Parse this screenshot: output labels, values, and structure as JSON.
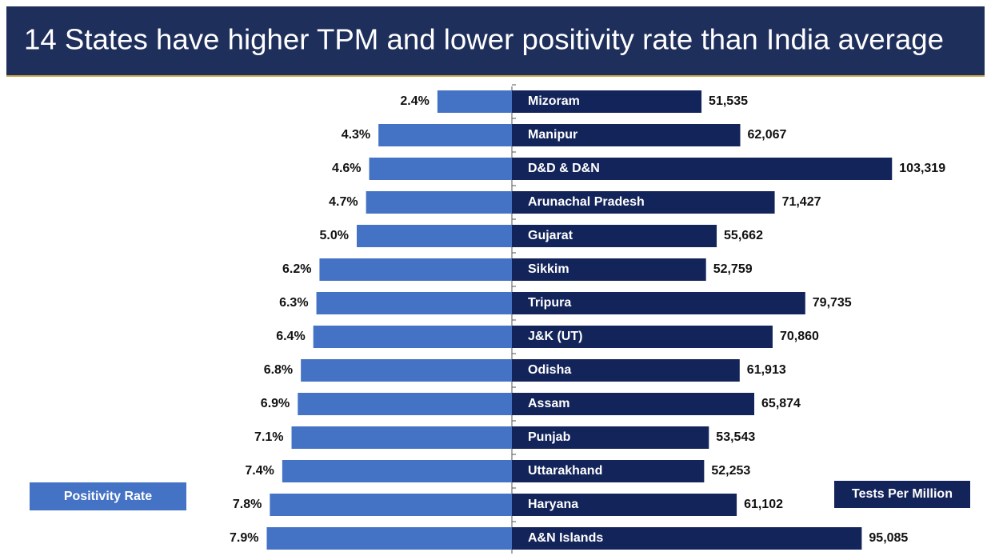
{
  "chart_data": {
    "type": "butterfly",
    "title": "14 States have higher TPM and lower positivity rate than India average",
    "categories": [
      "Mizoram",
      "Manipur",
      "D&D & D&N",
      "Arunachal Pradesh",
      "Gujarat",
      "Sikkim",
      "Tripura",
      "J&K (UT)",
      "Odisha",
      "Assam",
      "Punjab",
      "Uttarakhand",
      "Haryana",
      "A&N Islands"
    ],
    "series": [
      {
        "name": "Positivity Rate",
        "color": "#4472c4",
        "values": [
          2.4,
          4.3,
          4.6,
          4.7,
          5.0,
          6.2,
          6.3,
          6.4,
          6.8,
          6.9,
          7.1,
          7.4,
          7.8,
          7.9
        ],
        "value_labels": [
          "2.4%",
          "4.3%",
          "4.6%",
          "4.7%",
          "5.0%",
          "6.2%",
          "6.3%",
          "6.4%",
          "6.8%",
          "6.9%",
          "7.1%",
          "7.4%",
          "7.8%",
          "7.9%"
        ],
        "xlim": [
          0,
          10
        ]
      },
      {
        "name": "Tests Per Million",
        "color": "#13245a",
        "values": [
          51535,
          62067,
          103319,
          71427,
          55662,
          52759,
          79735,
          70860,
          61913,
          65874,
          53543,
          52253,
          61102,
          95085
        ],
        "value_labels": [
          "51,535",
          "62,067",
          "103,319",
          "71,427",
          "55,662",
          "52,759",
          "79,735",
          "70,860",
          "61,913",
          "65,874",
          "53,543",
          "52,253",
          "61,102",
          "95,085"
        ],
        "xlim": [
          0,
          100000
        ]
      }
    ]
  }
}
